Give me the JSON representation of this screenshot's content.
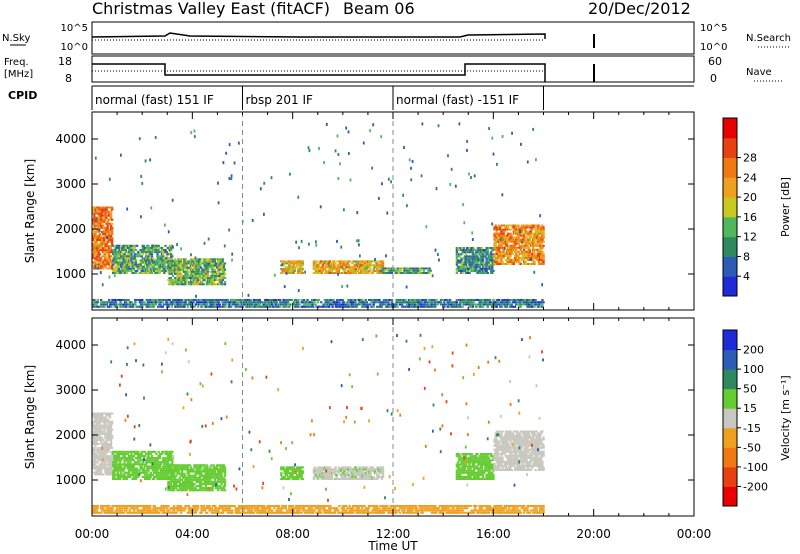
{
  "header": {
    "station": "Christmas Valley East (fitACF)",
    "beam": "Beam 06",
    "date": "20/Dec/2012"
  },
  "top_panels": {
    "nsky_label": "N.Sky",
    "nsky_ticks": [
      "10^5",
      "10^0"
    ],
    "nsearch_label": "N.Search",
    "nsearch_ticks": [
      "10^5",
      "10^0"
    ],
    "freq_label_1": "Freq.",
    "freq_label_2": "[MHz]",
    "freq_ticks": [
      "18",
      "8"
    ],
    "nave_label": "Nave",
    "nave_ticks": [
      "60",
      "0"
    ],
    "cpid_label": "CPID",
    "cpid_segments": [
      {
        "label": "normal (fast) 151 IF",
        "start": 0,
        "end": 6
      },
      {
        "label": "rbsp 201 IF",
        "start": 6,
        "end": 12
      },
      {
        "label": "normal (fast) -151 IF",
        "start": 12,
        "end": 18
      }
    ]
  },
  "chart_data": [
    {
      "type": "heatmap",
      "name": "power",
      "ylabel": "Slant Range [km]",
      "xlabel": "Time UT",
      "xlim": [
        0,
        24
      ],
      "ylim": [
        200,
        4600
      ],
      "x_ticks": [
        "00:00",
        "04:00",
        "08:00",
        "12:00",
        "16:00",
        "20:00",
        "00:00"
      ],
      "y_ticks": [
        "1000",
        "2000",
        "3000",
        "4000"
      ],
      "colorbar": {
        "label": "Power [dB]",
        "ticks": [
          "4",
          "8",
          "12",
          "16",
          "20",
          "24",
          "28"
        ],
        "colors": [
          "#1e2bd8",
          "#2a5cb8",
          "#2e8a5e",
          "#4fb85a",
          "#c8c820",
          "#f0a020",
          "#f07a10",
          "#e84010",
          "#e80000"
        ]
      },
      "regions": [
        {
          "t0": 0.0,
          "t1": 0.8,
          "r0": 1100,
          "r1": 2500,
          "v": 26
        },
        {
          "t0": 0.8,
          "t1": 3.2,
          "r0": 1000,
          "r1": 1650,
          "v": 12
        },
        {
          "t0": 3.0,
          "t1": 5.3,
          "r0": 750,
          "r1": 1350,
          "v": 14
        },
        {
          "t0": 7.5,
          "t1": 8.4,
          "r0": 1000,
          "r1": 1300,
          "v": 20
        },
        {
          "t0": 8.8,
          "t1": 11.6,
          "r0": 1000,
          "r1": 1300,
          "v": 22
        },
        {
          "t0": 11.5,
          "t1": 13.5,
          "r0": 1000,
          "r1": 1150,
          "v": 12
        },
        {
          "t0": 14.5,
          "t1": 16.0,
          "r0": 1000,
          "r1": 1600,
          "v": 10
        },
        {
          "t0": 16.0,
          "t1": 18.0,
          "r0": 1200,
          "r1": 2100,
          "v": 24
        },
        {
          "t0": 0.0,
          "t1": 18.0,
          "r0": 250,
          "r1": 450,
          "v": 8
        }
      ]
    },
    {
      "type": "heatmap",
      "name": "velocity",
      "ylabel": "Slant Range [km]",
      "xlabel": "Time UT",
      "xlim": [
        0,
        24
      ],
      "ylim": [
        200,
        4600
      ],
      "x_ticks": [
        "00:00",
        "04:00",
        "08:00",
        "12:00",
        "16:00",
        "20:00",
        "00:00"
      ],
      "y_ticks": [
        "1000",
        "2000",
        "3000",
        "4000"
      ],
      "colorbar": {
        "label": "Velocity [m s⁻¹]",
        "ticks": [
          "200",
          "100",
          "50",
          "15",
          "-15",
          "-50",
          "-100",
          "-200"
        ],
        "colors": [
          "#1e2bd8",
          "#2a5cb8",
          "#2e8a5e",
          "#66cc33",
          "#c8c8c0",
          "#f0a020",
          "#f07a10",
          "#e84010",
          "#e80000"
        ]
      },
      "regions": [
        {
          "t0": 0.0,
          "t1": 0.8,
          "r0": 1100,
          "r1": 2500,
          "v": 0
        },
        {
          "t0": 0.8,
          "t1": 3.2,
          "r0": 1000,
          "r1": 1650,
          "v": 30
        },
        {
          "t0": 3.0,
          "t1": 5.3,
          "r0": 750,
          "r1": 1350,
          "v": 35
        },
        {
          "t0": 7.5,
          "t1": 8.4,
          "r0": 1000,
          "r1": 1300,
          "v": 25
        },
        {
          "t0": 8.8,
          "t1": 11.6,
          "r0": 1000,
          "r1": 1300,
          "v": 10
        },
        {
          "t0": 14.5,
          "t1": 16.0,
          "r0": 1000,
          "r1": 1600,
          "v": 40
        },
        {
          "t0": 16.0,
          "t1": 18.0,
          "r0": 1200,
          "r1": 2100,
          "v": 0
        },
        {
          "t0": 0.0,
          "t1": 18.0,
          "r0": 250,
          "r1": 450,
          "v": -30
        }
      ]
    }
  ]
}
